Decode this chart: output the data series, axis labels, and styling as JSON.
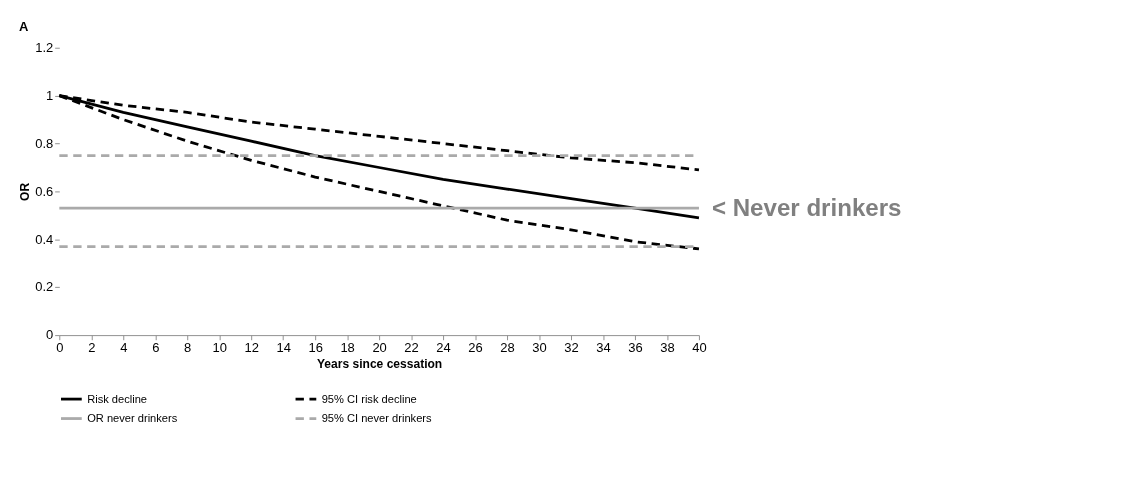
{
  "chart_data": {
    "type": "line",
    "title": "A",
    "xlabel": "Years since cessation",
    "ylabel": "OR",
    "xlim": [
      0,
      40
    ],
    "xticks": [
      0,
      2,
      4,
      6,
      8,
      10,
      12,
      14,
      16,
      18,
      20,
      22,
      24,
      26,
      28,
      30,
      32,
      34,
      36,
      38,
      40
    ],
    "ylim": [
      0,
      1.2
    ],
    "yticks": [
      0,
      0.2,
      0.4,
      0.6,
      0.8,
      1,
      1.2
    ],
    "grid": false,
    "legend": "bottom",
    "x": [
      0,
      4,
      8,
      12,
      16,
      20,
      24,
      28,
      32,
      36,
      40
    ],
    "series": [
      {
        "name": "Risk decline",
        "color": "#000000",
        "line_style": "solid",
        "values": [
          1,
          0.93,
          0.87,
          0.81,
          0.75,
          0.7,
          0.65,
          0.61,
          0.57,
          0.53,
          0.49
        ]
      },
      {
        "name": "95% CI risk decline",
        "color": "#000000",
        "line_style": "dashed",
        "values": [
          1,
          0.96,
          0.93,
          0.89,
          0.86,
          0.83,
          0.8,
          0.77,
          0.74,
          0.72,
          0.69
        ]
      },
      {
        "color": "#000000",
        "line_style": "dashed",
        "values": [
          1,
          0.9,
          0.81,
          0.73,
          0.66,
          0.6,
          0.54,
          0.48,
          0.44,
          0.39,
          0.36
        ]
      },
      {
        "name": "OR never drinkers",
        "color": "#aaaaaa",
        "line_style": "solid",
        "values": [
          0.53,
          0.53,
          0.53,
          0.53,
          0.53,
          0.53,
          0.53,
          0.53,
          0.53,
          0.53,
          0.53
        ]
      },
      {
        "name": "95% CI never drinkers",
        "color": "#aaaaaa",
        "line_style": "dashed",
        "values": [
          0.75,
          0.75,
          0.75,
          0.75,
          0.75,
          0.75,
          0.75,
          0.75,
          0.75,
          0.75,
          0.75
        ]
      },
      {
        "color": "#aaaaaa",
        "line_style": "dashed",
        "values": [
          0.37,
          0.37,
          0.37,
          0.37,
          0.37,
          0.37,
          0.37,
          0.37,
          0.37,
          0.37,
          0.37
        ]
      }
    ],
    "annotations": [
      {
        "text": "< Never drinkers",
        "x": 40,
        "y": 0.53
      }
    ]
  }
}
